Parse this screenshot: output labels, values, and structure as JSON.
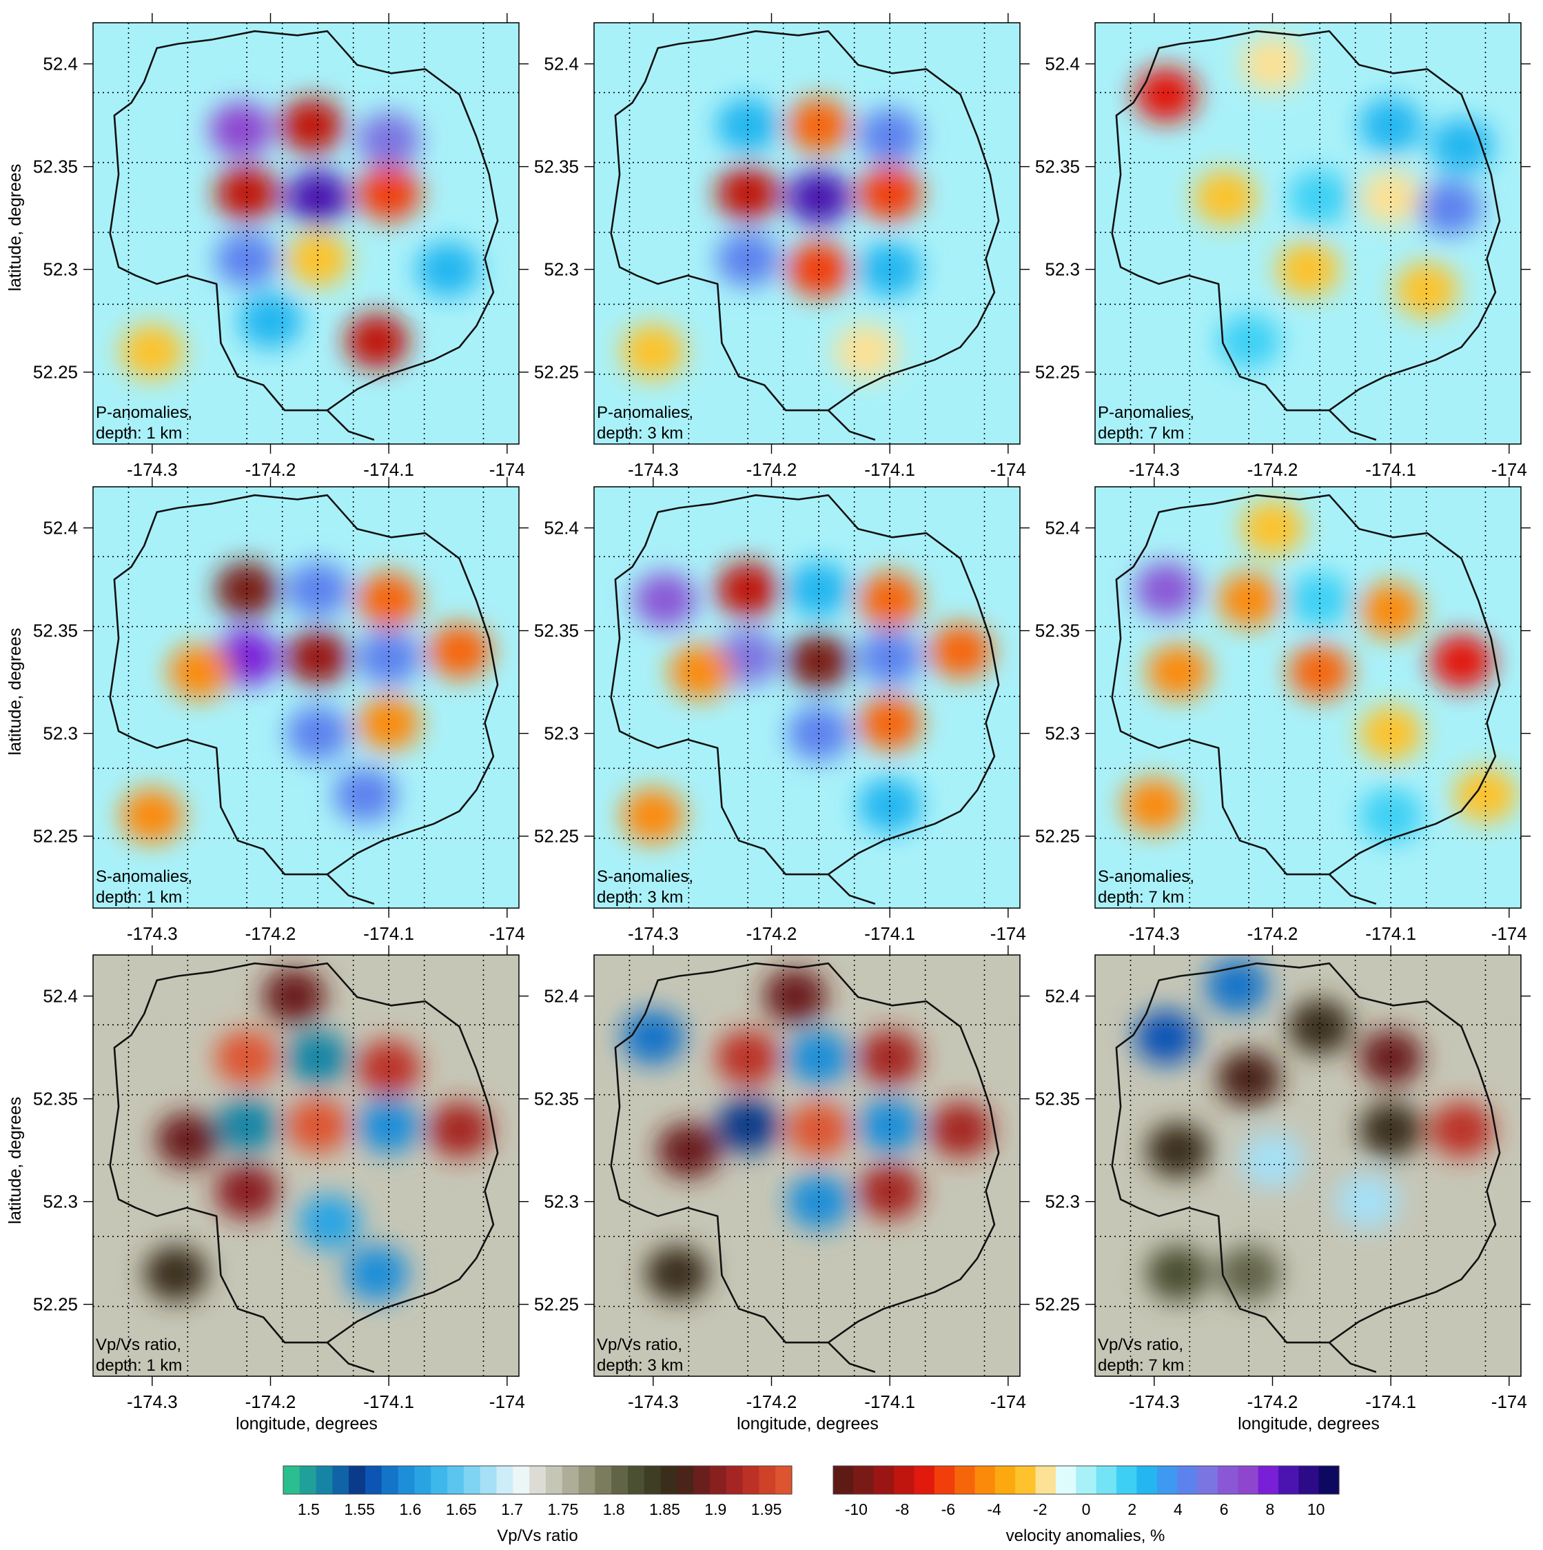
{
  "chart_data": {
    "type": "heatmap",
    "xlabel": "longitude, degrees",
    "ylabel": "latitude, degrees",
    "xlim": [
      -174.35,
      -173.99
    ],
    "ylim": [
      52.215,
      52.42
    ],
    "xticks": [
      -174.3,
      -174.2,
      -174.1,
      -174
    ],
    "xtick_labels": [
      "-174.3",
      "-174.2",
      "-174.1",
      "-174"
    ],
    "yticks": [
      52.25,
      52.3,
      52.35,
      52.4
    ],
    "ytick_labels": [
      "52.25",
      "52.3",
      "52.35",
      "52.4"
    ],
    "grid_lon": [
      -174.32,
      -174.27,
      -174.22,
      -174.19,
      -174.16,
      -174.13,
      -174.1,
      -174.07,
      -174.02
    ],
    "grid_lat": [
      52.249,
      52.283,
      52.318,
      52.352,
      52.386
    ],
    "panels": [
      {
        "row": 0,
        "col": 0,
        "quantity": "P-anomalies",
        "depth": "depth: 1 km",
        "label1": "P-anomalies,",
        "label2": "depth: 1 km",
        "scale": "velocity",
        "blobs": [
          {
            "lon": -174.225,
            "lat": 52.368,
            "v": 7
          },
          {
            "lon": -174.165,
            "lat": 52.37,
            "v": -8
          },
          {
            "lon": -174.1,
            "lat": 52.363,
            "v": 5
          },
          {
            "lon": -174.22,
            "lat": 52.337,
            "v": -8
          },
          {
            "lon": -174.16,
            "lat": 52.335,
            "v": 9
          },
          {
            "lon": -174.1,
            "lat": 52.337,
            "v": -6
          },
          {
            "lon": -174.22,
            "lat": 52.305,
            "v": 4
          },
          {
            "lon": -174.16,
            "lat": 52.305,
            "v": -3
          },
          {
            "lon": -174.11,
            "lat": 52.265,
            "v": -8
          },
          {
            "lon": -174.2,
            "lat": 52.275,
            "v": 3
          },
          {
            "lon": -174.3,
            "lat": 52.26,
            "v": -3
          },
          {
            "lon": -174.05,
            "lat": 52.3,
            "v": 3
          }
        ]
      },
      {
        "row": 0,
        "col": 1,
        "quantity": "P-anomalies",
        "depth": "depth: 3 km",
        "label1": "P-anomalies,",
        "label2": "depth: 3 km",
        "scale": "velocity",
        "blobs": [
          {
            "lon": -174.22,
            "lat": 52.37,
            "v": 3
          },
          {
            "lon": -174.16,
            "lat": 52.37,
            "v": -5
          },
          {
            "lon": -174.1,
            "lat": 52.365,
            "v": 4
          },
          {
            "lon": -174.22,
            "lat": 52.337,
            "v": -8
          },
          {
            "lon": -174.16,
            "lat": 52.335,
            "v": 9
          },
          {
            "lon": -174.1,
            "lat": 52.337,
            "v": -6
          },
          {
            "lon": -174.22,
            "lat": 52.305,
            "v": 4
          },
          {
            "lon": -174.16,
            "lat": 52.3,
            "v": -6
          },
          {
            "lon": -174.1,
            "lat": 52.3,
            "v": 3
          },
          {
            "lon": -174.3,
            "lat": 52.26,
            "v": -3
          },
          {
            "lon": -174.12,
            "lat": 52.26,
            "v": -2
          }
        ]
      },
      {
        "row": 0,
        "col": 2,
        "quantity": "P-anomalies",
        "depth": "depth: 7 km",
        "label1": "P-anomalies,",
        "label2": "depth: 7 km",
        "scale": "velocity",
        "blobs": [
          {
            "lon": -174.29,
            "lat": 52.385,
            "v": -7
          },
          {
            "lon": -174.2,
            "lat": 52.4,
            "v": -2
          },
          {
            "lon": -174.1,
            "lat": 52.37,
            "v": 3
          },
          {
            "lon": -174.04,
            "lat": 52.36,
            "v": 3
          },
          {
            "lon": -174.24,
            "lat": 52.335,
            "v": -3
          },
          {
            "lon": -174.16,
            "lat": 52.335,
            "v": 2
          },
          {
            "lon": -174.1,
            "lat": 52.335,
            "v": -2
          },
          {
            "lon": -174.05,
            "lat": 52.33,
            "v": 4
          },
          {
            "lon": -174.17,
            "lat": 52.3,
            "v": -3
          },
          {
            "lon": -174.07,
            "lat": 52.29,
            "v": -3
          },
          {
            "lon": -174.22,
            "lat": 52.265,
            "v": 2
          }
        ]
      },
      {
        "row": 1,
        "col": 0,
        "quantity": "S-anomalies",
        "depth": "depth: 1 km",
        "label1": "S-anomalies,",
        "label2": "depth: 1 km",
        "scale": "velocity",
        "blobs": [
          {
            "lon": -174.22,
            "lat": 52.37,
            "v": -10
          },
          {
            "lon": -174.16,
            "lat": 52.37,
            "v": 4
          },
          {
            "lon": -174.1,
            "lat": 52.365,
            "v": -5
          },
          {
            "lon": -174.22,
            "lat": 52.337,
            "v": 8
          },
          {
            "lon": -174.16,
            "lat": 52.337,
            "v": -9
          },
          {
            "lon": -174.1,
            "lat": 52.337,
            "v": 4
          },
          {
            "lon": -174.04,
            "lat": 52.34,
            "v": -5
          },
          {
            "lon": -174.26,
            "lat": 52.33,
            "v": -4
          },
          {
            "lon": -174.16,
            "lat": 52.3,
            "v": 4
          },
          {
            "lon": -174.1,
            "lat": 52.305,
            "v": -4
          },
          {
            "lon": -174.3,
            "lat": 52.26,
            "v": -4
          },
          {
            "lon": -174.12,
            "lat": 52.27,
            "v": 4
          }
        ]
      },
      {
        "row": 1,
        "col": 1,
        "quantity": "S-anomalies",
        "depth": "depth: 3 km",
        "label1": "S-anomalies,",
        "label2": "depth: 3 km",
        "scale": "velocity",
        "blobs": [
          {
            "lon": -174.22,
            "lat": 52.37,
            "v": -8
          },
          {
            "lon": -174.16,
            "lat": 52.37,
            "v": 3
          },
          {
            "lon": -174.1,
            "lat": 52.365,
            "v": -5
          },
          {
            "lon": -174.29,
            "lat": 52.365,
            "v": 6
          },
          {
            "lon": -174.22,
            "lat": 52.337,
            "v": 5
          },
          {
            "lon": -174.16,
            "lat": 52.335,
            "v": -10
          },
          {
            "lon": -174.1,
            "lat": 52.337,
            "v": 4
          },
          {
            "lon": -174.04,
            "lat": 52.34,
            "v": -5
          },
          {
            "lon": -174.26,
            "lat": 52.33,
            "v": -4
          },
          {
            "lon": -174.16,
            "lat": 52.3,
            "v": 4
          },
          {
            "lon": -174.1,
            "lat": 52.305,
            "v": -5
          },
          {
            "lon": -174.3,
            "lat": 52.26,
            "v": -4
          },
          {
            "lon": -174.1,
            "lat": 52.265,
            "v": 3
          }
        ]
      },
      {
        "row": 1,
        "col": 2,
        "quantity": "S-anomalies",
        "depth": "depth: 7 km",
        "label1": "S-anomalies,",
        "label2": "depth: 7 km",
        "scale": "velocity",
        "blobs": [
          {
            "lon": -174.29,
            "lat": 52.37,
            "v": 6
          },
          {
            "lon": -174.22,
            "lat": 52.365,
            "v": -4
          },
          {
            "lon": -174.16,
            "lat": 52.365,
            "v": 2
          },
          {
            "lon": -174.1,
            "lat": 52.36,
            "v": -4
          },
          {
            "lon": -174.04,
            "lat": 52.335,
            "v": -7
          },
          {
            "lon": -174.2,
            "lat": 52.4,
            "v": -3
          },
          {
            "lon": -174.28,
            "lat": 52.33,
            "v": -4
          },
          {
            "lon": -174.16,
            "lat": 52.33,
            "v": -5
          },
          {
            "lon": -174.1,
            "lat": 52.3,
            "v": -3
          },
          {
            "lon": -174.3,
            "lat": 52.265,
            "v": -4
          },
          {
            "lon": -174.1,
            "lat": 52.26,
            "v": 2
          },
          {
            "lon": -174.02,
            "lat": 52.27,
            "v": -3
          }
        ]
      },
      {
        "row": 2,
        "col": 0,
        "quantity": "Vp/Vs ratio",
        "depth": "depth: 1 km",
        "label1": "Vp/Vs ratio,",
        "label2": "depth: 1 km",
        "scale": "ratio",
        "blobs": [
          {
            "lon": -174.22,
            "lat": 52.37,
            "v": 1.98
          },
          {
            "lon": -174.16,
            "lat": 52.37,
            "v": 1.52
          },
          {
            "lon": -174.1,
            "lat": 52.365,
            "v": 1.93
          },
          {
            "lon": -174.22,
            "lat": 52.337,
            "v": 1.52
          },
          {
            "lon": -174.16,
            "lat": 52.337,
            "v": 1.98
          },
          {
            "lon": -174.1,
            "lat": 52.337,
            "v": 1.6
          },
          {
            "lon": -174.04,
            "lat": 52.335,
            "v": 1.92
          },
          {
            "lon": -174.27,
            "lat": 52.33,
            "v": 1.88
          },
          {
            "lon": -174.22,
            "lat": 52.305,
            "v": 1.9
          },
          {
            "lon": -174.15,
            "lat": 52.29,
            "v": 1.62
          },
          {
            "lon": -174.11,
            "lat": 52.265,
            "v": 1.6
          },
          {
            "lon": -174.28,
            "lat": 52.265,
            "v": 1.85
          },
          {
            "lon": -174.18,
            "lat": 52.4,
            "v": 1.88
          }
        ]
      },
      {
        "row": 2,
        "col": 1,
        "quantity": "Vp/Vs ratio",
        "depth": "depth: 3 km",
        "label1": "Vp/Vs ratio,",
        "label2": "depth: 3 km",
        "scale": "ratio",
        "blobs": [
          {
            "lon": -174.22,
            "lat": 52.37,
            "v": 1.93
          },
          {
            "lon": -174.16,
            "lat": 52.37,
            "v": 1.6
          },
          {
            "lon": -174.1,
            "lat": 52.37,
            "v": 1.92
          },
          {
            "lon": -174.22,
            "lat": 52.337,
            "v": 1.55
          },
          {
            "lon": -174.16,
            "lat": 52.335,
            "v": 1.98
          },
          {
            "lon": -174.1,
            "lat": 52.337,
            "v": 1.6
          },
          {
            "lon": -174.04,
            "lat": 52.335,
            "v": 1.92
          },
          {
            "lon": -174.3,
            "lat": 52.38,
            "v": 1.58
          },
          {
            "lon": -174.27,
            "lat": 52.325,
            "v": 1.88
          },
          {
            "lon": -174.16,
            "lat": 52.3,
            "v": 1.6
          },
          {
            "lon": -174.1,
            "lat": 52.305,
            "v": 1.92
          },
          {
            "lon": -174.28,
            "lat": 52.265,
            "v": 1.85
          },
          {
            "lon": -174.18,
            "lat": 52.4,
            "v": 1.88
          }
        ]
      },
      {
        "row": 2,
        "col": 2,
        "quantity": "Vp/Vs ratio",
        "depth": "depth: 7 km",
        "label1": "Vp/Vs ratio,",
        "label2": "depth: 7 km",
        "scale": "ratio",
        "blobs": [
          {
            "lon": -174.29,
            "lat": 52.38,
            "v": 1.56
          },
          {
            "lon": -174.23,
            "lat": 52.405,
            "v": 1.58
          },
          {
            "lon": -174.22,
            "lat": 52.36,
            "v": 1.87
          },
          {
            "lon": -174.16,
            "lat": 52.385,
            "v": 1.86
          },
          {
            "lon": -174.1,
            "lat": 52.37,
            "v": 1.88
          },
          {
            "lon": -174.04,
            "lat": 52.335,
            "v": 1.94
          },
          {
            "lon": -174.1,
            "lat": 52.335,
            "v": 1.85
          },
          {
            "lon": -174.28,
            "lat": 52.325,
            "v": 1.86
          },
          {
            "lon": -174.2,
            "lat": 52.32,
            "v": 1.68
          },
          {
            "lon": -174.12,
            "lat": 52.3,
            "v": 1.67
          },
          {
            "lon": -174.28,
            "lat": 52.265,
            "v": 1.82
          },
          {
            "lon": -174.22,
            "lat": 52.265,
            "v": 1.8
          }
        ]
      }
    ],
    "colorbars": [
      {
        "name": "ratio",
        "title": "Vp/Vs ratio",
        "min": 1.475,
        "max": 1.975,
        "colors": [
          "#2bbf8f",
          "#20a09a",
          "#1685a5",
          "#0f63a6",
          "#0a3a8a",
          "#0d55b5",
          "#1474c8",
          "#1d8ed8",
          "#29a4e3",
          "#3eb7ec",
          "#5bc5f0",
          "#7fd3f3",
          "#a5e0f6",
          "#cdeef9",
          "#ecf6f6",
          "#dcdcd4",
          "#c6c6b6",
          "#aeae98",
          "#95957a",
          "#7b7c5e",
          "#626448",
          "#4c5033",
          "#3e3e24",
          "#3a2d1c",
          "#4a2319",
          "#6a1f1c",
          "#8a1f20",
          "#a52524",
          "#bc3126",
          "#cf4228",
          "#dd5430"
        ],
        "ticks": [
          1.5,
          1.55,
          1.6,
          1.65,
          1.7,
          1.75,
          1.8,
          1.85,
          1.9,
          1.95
        ],
        "tick_labels": [
          "1.5",
          "1.55",
          "1.6",
          "1.65",
          "1.7",
          "1.75",
          "1.8",
          "1.85",
          "1.9",
          "1.95"
        ]
      },
      {
        "name": "velocity",
        "title": "velocity anomalies, %",
        "min": -11,
        "max": 11,
        "colors": [
          "#5e1a14",
          "#7a1a16",
          "#9a1514",
          "#c0140f",
          "#e2190d",
          "#f23e0b",
          "#f7650a",
          "#fb8a0a",
          "#fca910",
          "#fdc22c",
          "#fde194",
          "#dffcfc",
          "#a9f1f9",
          "#72e4f6",
          "#3dd0f4",
          "#24b6f0",
          "#3d9af0",
          "#5d82ee",
          "#7b75e1",
          "#8a58d6",
          "#8e46cf",
          "#7a1fd8",
          "#4b14b0",
          "#2d0a88",
          "#0d0860"
        ],
        "ticks": [
          -10,
          -8,
          -6,
          -4,
          -2,
          0,
          2,
          4,
          6,
          8,
          10
        ],
        "tick_labels": [
          "-10",
          "-8",
          "-6",
          "-4",
          "-2",
          "0",
          "2",
          "4",
          "6",
          "8",
          "10"
        ]
      }
    ]
  }
}
